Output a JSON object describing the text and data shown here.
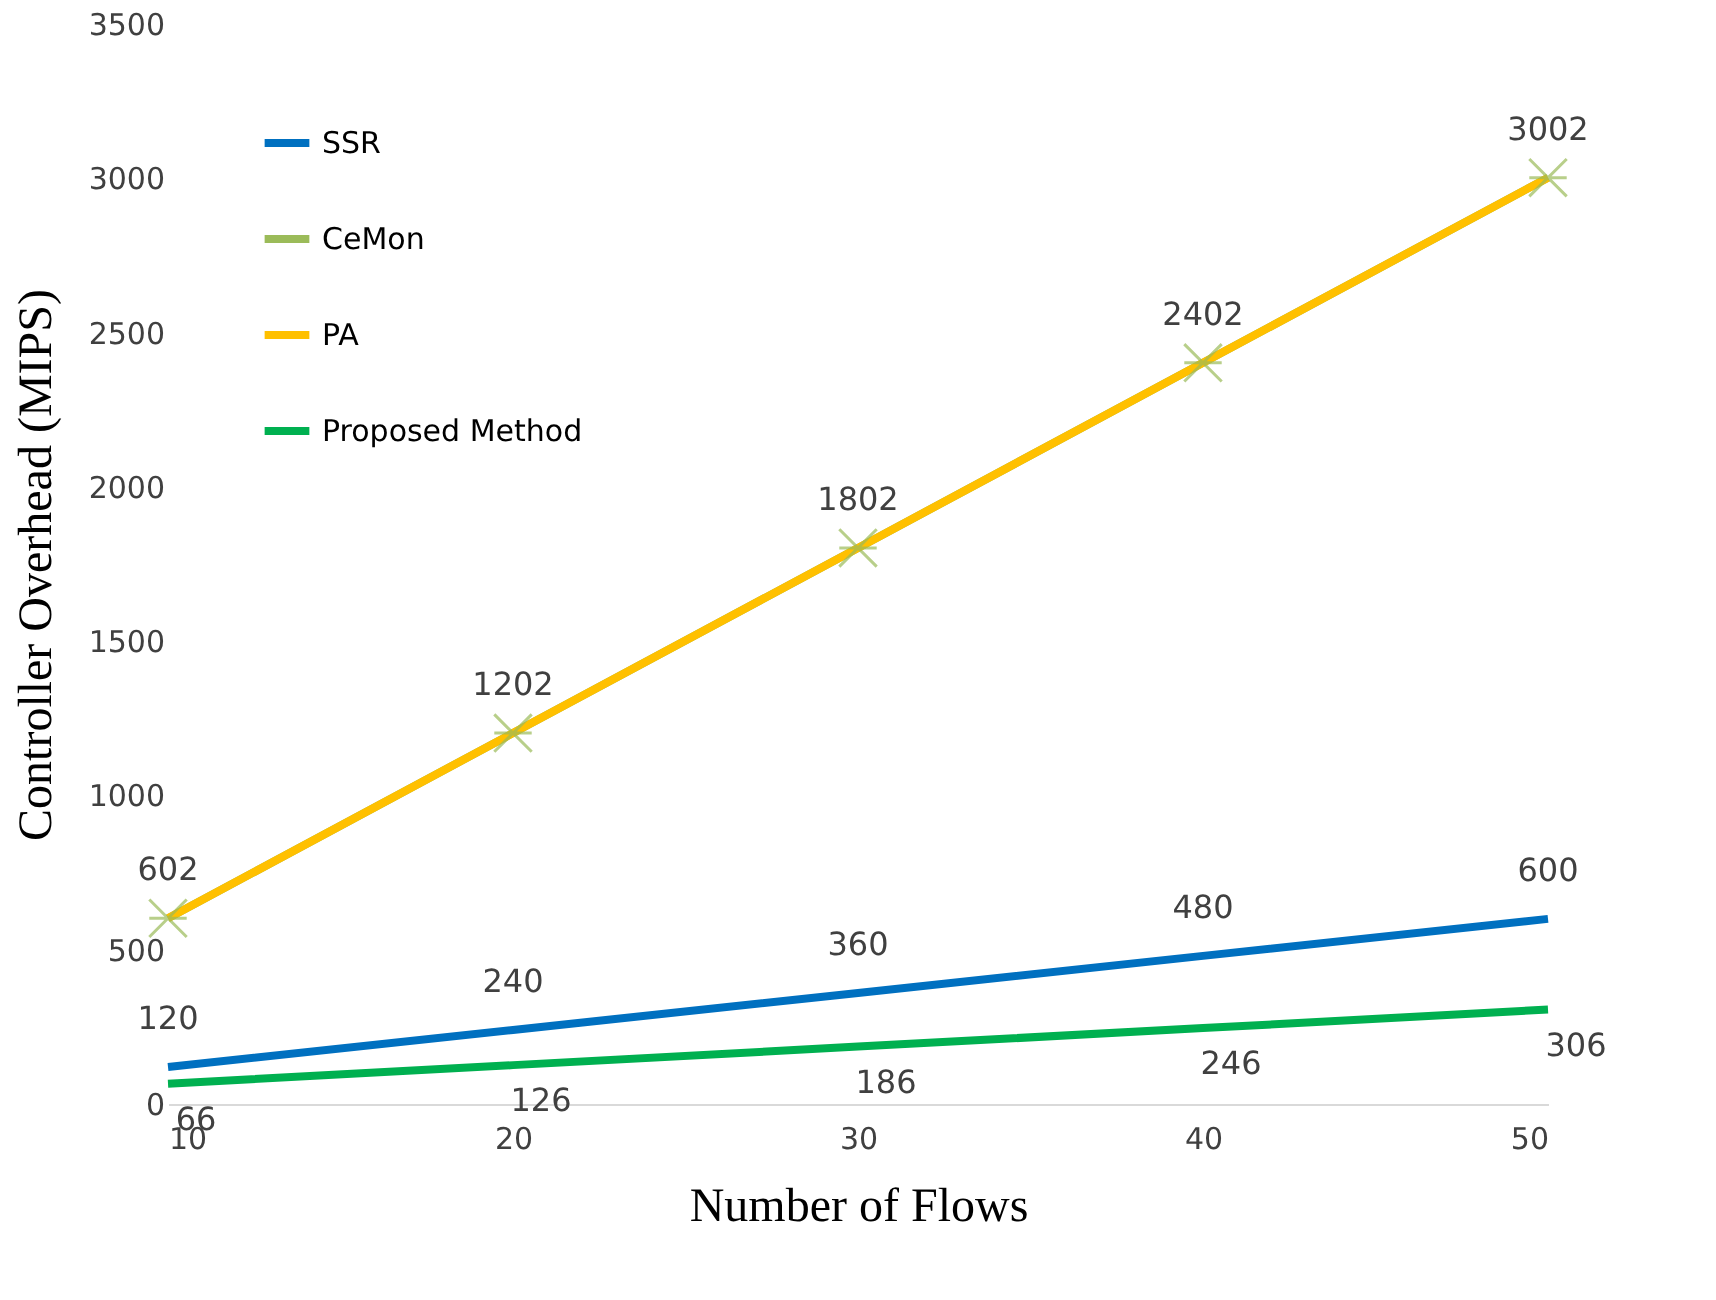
{
  "chart_data": {
    "type": "line",
    "xlabel": "Number of Flows",
    "ylabel": "Controller Overhead (MIPS)",
    "x": [
      10,
      20,
      30,
      40,
      50
    ],
    "xlim": [
      10,
      50
    ],
    "xticks": [
      10,
      20,
      30,
      40,
      50
    ],
    "ylim": [
      0,
      3500
    ],
    "yticks": [
      0,
      500,
      1000,
      1500,
      2000,
      2500,
      3000,
      3500
    ],
    "grid": false,
    "legend": "top left",
    "line_style": "solid",
    "series": [
      {
        "name": "SSR",
        "color": "#0070c0",
        "marker": "none",
        "values": [
          120,
          240,
          360,
          480,
          600
        ],
        "value_labels": [
          "120",
          "240",
          "360",
          "480",
          "600"
        ]
      },
      {
        "name": "CeMon",
        "color": "#9bbb59",
        "marker": "cross",
        "values": [
          602,
          1202,
          1802,
          2402,
          3002
        ],
        "value_labels": [
          null,
          null,
          null,
          null,
          null
        ]
      },
      {
        "name": "PA",
        "color": "#ffc000",
        "marker": "none",
        "values": [
          602,
          1202,
          1802,
          2402,
          3002
        ],
        "value_labels": [
          "602",
          "1202",
          "1802",
          "2402",
          "3002"
        ]
      },
      {
        "name": "Proposed Method",
        "color": "#00b050",
        "marker": "none",
        "values": [
          66,
          126,
          186,
          246,
          306
        ],
        "value_labels": [
          "66",
          "126",
          "186",
          "246",
          "306"
        ]
      }
    ]
  }
}
